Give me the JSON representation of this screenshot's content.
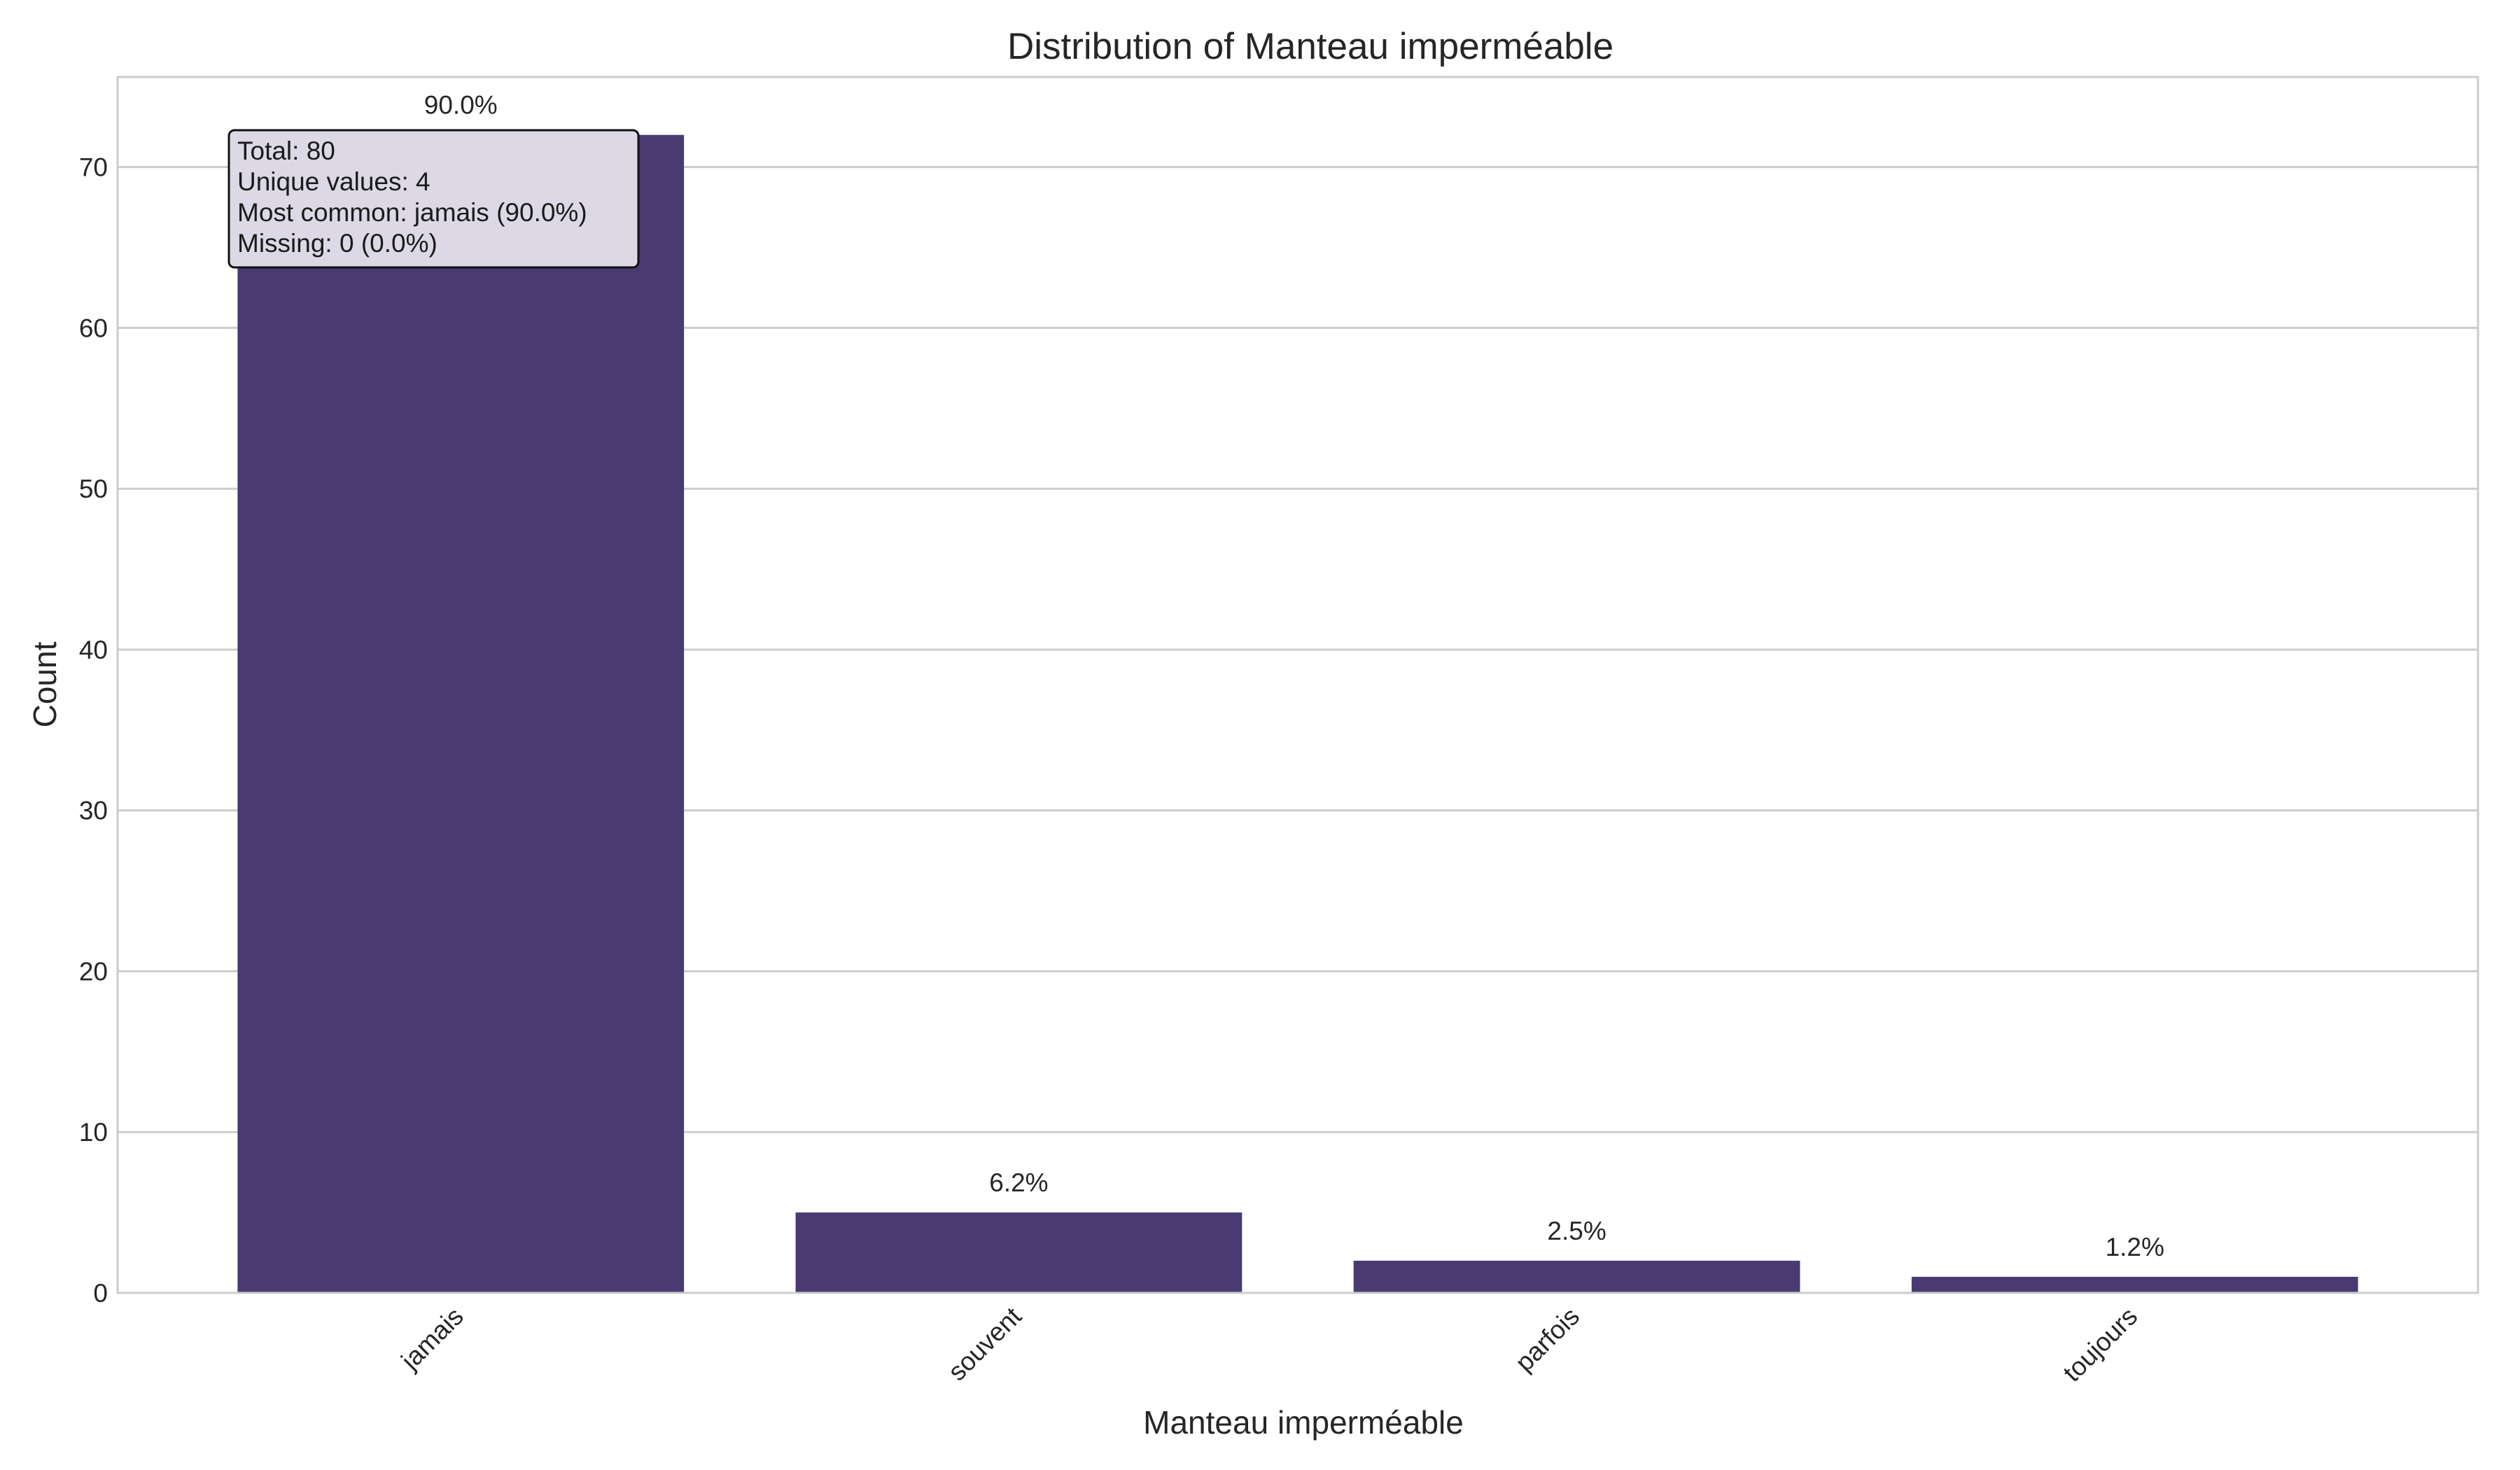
{
  "chart_data": {
    "type": "bar",
    "title": "Distribution of Manteau imperméable",
    "xlabel": "Manteau imperméable",
    "ylabel": "Count",
    "categories": [
      "jamais",
      "souvent",
      "parfois",
      "toujours"
    ],
    "values": [
      72,
      5,
      2,
      1
    ],
    "percent_labels": [
      "90.0%",
      "6.2%",
      "2.5%",
      "1.2%"
    ],
    "ylim": [
      0,
      75.6
    ],
    "yticks": [
      0,
      10,
      20,
      30,
      40,
      50,
      60,
      70
    ],
    "grid": true,
    "bar_color": "#493a72",
    "stats_box": {
      "lines": [
        "Total: 80",
        "Unique values: 4",
        "Most common: jamais (90.0%)",
        "Missing: 0 (0.0%)"
      ],
      "placement": "top-left"
    }
  }
}
